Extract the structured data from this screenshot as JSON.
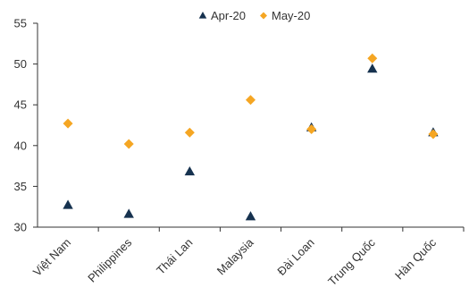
{
  "chart_data": {
    "type": "scatter",
    "categories": [
      "Việt Nam",
      "Philippines",
      "Thái Lan",
      "Malaysia",
      "Đài Loan",
      "Trung Quốc",
      "Hàn Quốc"
    ],
    "series": [
      {
        "name": "Apr-20",
        "marker": "triangle",
        "color": "#16324F",
        "values": [
          32.7,
          31.6,
          36.8,
          31.3,
          42.2,
          49.4,
          41.6
        ]
      },
      {
        "name": "May-20",
        "marker": "diamond",
        "color": "#F5A623",
        "values": [
          42.7,
          40.2,
          41.6,
          45.6,
          42.0,
          50.7,
          41.4
        ]
      }
    ],
    "y_ticks": [
      "30",
      "35",
      "40",
      "45",
      "50",
      "55"
    ],
    "ylim": [
      30,
      55
    ],
    "grid": false,
    "legend_position": "top-center",
    "x_label_rotation_deg": -45
  }
}
